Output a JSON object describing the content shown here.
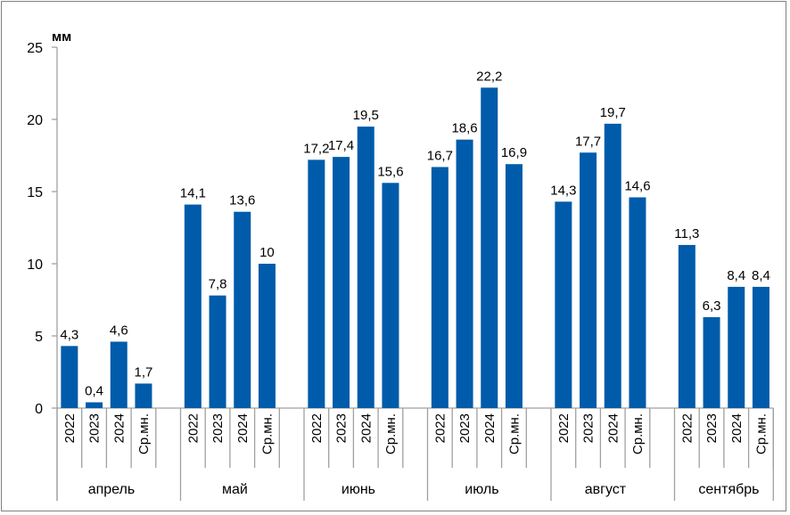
{
  "chart_data": {
    "type": "bar",
    "ylabel": "мм",
    "ylim": [
      0,
      25
    ],
    "yticks": [
      0,
      5,
      10,
      15,
      20,
      25
    ],
    "bar_color": "#005BAA",
    "groups": [
      {
        "month": "апрель",
        "categories": [
          "2022",
          "2023",
          "2024",
          "Ср.мн."
        ],
        "values": [
          4.3,
          0.4,
          4.6,
          1.7
        ],
        "labels": [
          "4,3",
          "0,4",
          "4,6",
          "1,7"
        ]
      },
      {
        "month": "май",
        "categories": [
          "2022",
          "2023",
          "2024",
          "Ср.мн."
        ],
        "values": [
          14.1,
          7.8,
          13.6,
          10
        ],
        "labels": [
          "14,1",
          "7,8",
          "13,6",
          "10"
        ]
      },
      {
        "month": "июнь",
        "categories": [
          "2022",
          "2023",
          "2024",
          "Ср.мн."
        ],
        "values": [
          17.2,
          17.4,
          19.5,
          15.6
        ],
        "labels": [
          "17,2",
          "17,4",
          "19,5",
          "15,6"
        ]
      },
      {
        "month": "июль",
        "categories": [
          "2022",
          "2023",
          "2024",
          "Ср.мн."
        ],
        "values": [
          16.7,
          18.6,
          22.2,
          16.9
        ],
        "labels": [
          "16,7",
          "18,6",
          "22,2",
          "16,9"
        ]
      },
      {
        "month": "август",
        "categories": [
          "2022",
          "2023",
          "2024",
          "Ср.мн."
        ],
        "values": [
          14.3,
          17.7,
          19.7,
          14.6
        ],
        "labels": [
          "14,3",
          "17,7",
          "19,7",
          "14,6"
        ]
      },
      {
        "month": "сентябрь",
        "categories": [
          "2022",
          "2023",
          "2024",
          "Ср.мн."
        ],
        "values": [
          11.3,
          6.3,
          8.4,
          8.4
        ],
        "labels": [
          "11,3",
          "6,3",
          "8,4",
          "8,4"
        ]
      }
    ],
    "grid": false,
    "legend": "none"
  }
}
